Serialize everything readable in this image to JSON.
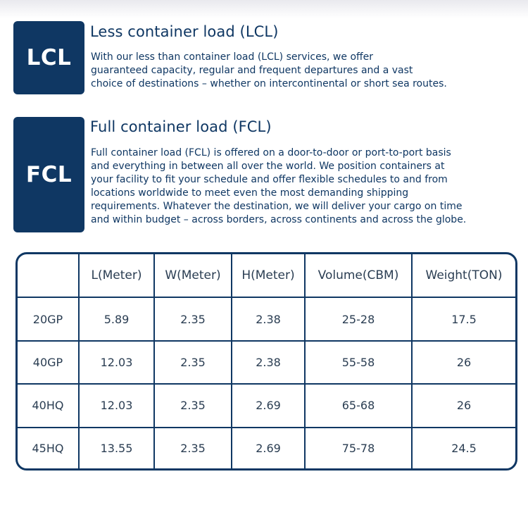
{
  "lcl": {
    "badge": "LCL",
    "title": "Less container load (LCL)",
    "lines": [
      "With our less than container load (LCL) services, we offer",
      "guaranteed capacity, regular and frequent departures and a vast",
      "choice of destinations – whether on intercontinental or short sea routes."
    ]
  },
  "fcl": {
    "badge": "FCL",
    "title": "Full container load (FCL)",
    "lines": [
      "Full container load (FCL) is offered on a door-to-door or port-to-port basis",
      "and everything in between all over the world. We position containers at",
      "your facility to fit your schedule and offer flexible schedules to and from",
      "locations worldwide to meet even the most demanding shipping",
      "requirements. Whatever the destination, we will deliver your cargo on time",
      "and within budget – across borders, across continents and across the globe."
    ]
  },
  "table": {
    "headers": [
      "",
      "L(Meter)",
      "W(Meter)",
      "H(Meter)",
      "Volume(CBM)",
      "Weight(TON)"
    ],
    "rows": [
      [
        "20GP",
        "5.89",
        "2.35",
        "2.38",
        "25-28",
        "17.5"
      ],
      [
        "40GP",
        "12.03",
        "2.35",
        "2.38",
        "55-58",
        "26"
      ],
      [
        "40HQ",
        "12.03",
        "2.35",
        "2.69",
        "65-68",
        "26"
      ],
      [
        "45HQ",
        "13.55",
        "2.35",
        "2.69",
        "75-78",
        "24.5"
      ]
    ]
  },
  "colors": {
    "brand": "#0f3763",
    "text": "#2a3d52",
    "background": "#ffffff"
  }
}
